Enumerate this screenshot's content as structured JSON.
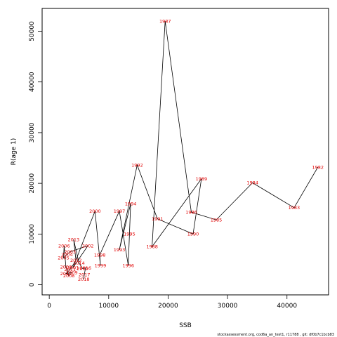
{
  "chart_data": {
    "type": "line",
    "xlabel": "SSB",
    "ylabel": "R(age 1)",
    "xlim": [
      -1200,
      47000
    ],
    "ylim": [
      -2000,
      54500
    ],
    "xticks": [
      0,
      10000,
      20000,
      30000,
      40000
    ],
    "yticks": [
      0,
      10000,
      20000,
      30000,
      40000,
      50000
    ],
    "grid": false,
    "line_color": "#000000",
    "label_color": "#e00000",
    "footnote": "stockassessment.org, cod6a_an_test1, r11788 , git: df0b7c1bcb83",
    "points": [
      {
        "year": "1982",
        "ssb": 45200,
        "r": 23200
      },
      {
        "year": "1983",
        "ssb": 41200,
        "r": 15200
      },
      {
        "year": "1984",
        "ssb": 34200,
        "r": 20100
      },
      {
        "year": "1985",
        "ssb": 28100,
        "r": 12800
      },
      {
        "year": "1986",
        "ssb": 23900,
        "r": 14300
      },
      {
        "year": "1987",
        "ssb": 19500,
        "r": 52000
      },
      {
        "year": "1988",
        "ssb": 17300,
        "r": 7500
      },
      {
        "year": "1989",
        "ssb": 25600,
        "r": 20900
      },
      {
        "year": "1990",
        "ssb": 24200,
        "r": 10000
      },
      {
        "year": "1991",
        "ssb": 18200,
        "r": 13000
      },
      {
        "year": "1992",
        "ssb": 14800,
        "r": 23600
      },
      {
        "year": "1993",
        "ssb": 11800,
        "r": 6900
      },
      {
        "year": "1994",
        "ssb": 13700,
        "r": 16000
      },
      {
        "year": "1995",
        "ssb": 13500,
        "r": 10000
      },
      {
        "year": "1996",
        "ssb": 13300,
        "r": 3800
      },
      {
        "year": "1997",
        "ssb": 11800,
        "r": 14500
      },
      {
        "year": "1998",
        "ssb": 8500,
        "r": 5900
      },
      {
        "year": "1999",
        "ssb": 8600,
        "r": 3800
      },
      {
        "year": "2000",
        "ssb": 7700,
        "r": 14500
      },
      {
        "year": "2001",
        "ssb": 4000,
        "r": 3400
      },
      {
        "year": "2002",
        "ssb": 6500,
        "r": 7700
      },
      {
        "year": "2003",
        "ssb": 3500,
        "r": 6500
      },
      {
        "year": "2004",
        "ssb": 3000,
        "r": 6000
      },
      {
        "year": "2005",
        "ssb": 2400,
        "r": 5300
      },
      {
        "year": "2006",
        "ssb": 2500,
        "r": 7700
      },
      {
        "year": "2007",
        "ssb": 2800,
        "r": 3500
      },
      {
        "year": "2008",
        "ssb": 3300,
        "r": 1800
      },
      {
        "year": "2009",
        "ssb": 3800,
        "r": 2400
      },
      {
        "year": "2010",
        "ssb": 2800,
        "r": 2200
      },
      {
        "year": "2011",
        "ssb": 3500,
        "r": 3000
      },
      {
        "year": "2012",
        "ssb": 4500,
        "r": 4800
      },
      {
        "year": "2013",
        "ssb": 4100,
        "r": 8900
      },
      {
        "year": "2014",
        "ssb": 5000,
        "r": 4300
      },
      {
        "year": "2015",
        "ssb": 5600,
        "r": 3200
      },
      {
        "year": "2016",
        "ssb": 6100,
        "r": 3300
      },
      {
        "year": "2017",
        "ssb": 5900,
        "r": 2000
      },
      {
        "year": "2018",
        "ssb": 5800,
        "r": 1100
      }
    ]
  }
}
